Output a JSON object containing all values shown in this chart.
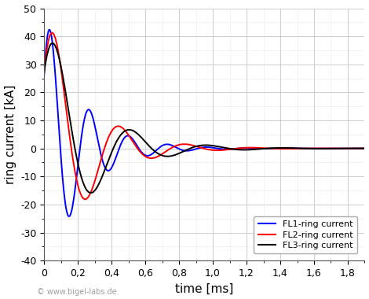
{
  "xlabel": "time [ms]",
  "ylabel": "ring current [kA]",
  "xlim": [
    0,
    1.9
  ],
  "ylim": [
    -40,
    50
  ],
  "yticks": [
    -40,
    -30,
    -20,
    -10,
    0,
    10,
    20,
    30,
    40,
    50
  ],
  "xticks": [
    0.0,
    0.2,
    0.4,
    0.6,
    0.8,
    1.0,
    1.2,
    1.4,
    1.6,
    1.8
  ],
  "xtick_labels": [
    "0",
    "0,2",
    "0,4",
    "0,6",
    "0,8",
    "1,0",
    "1,2",
    "1,4",
    "1,6",
    "1,8"
  ],
  "ytick_labels": [
    "-40",
    "-30",
    "-20",
    "-10",
    "0",
    "10",
    "20",
    "30",
    "40",
    "50"
  ],
  "background_color": "#ffffff",
  "grid_color": "#c8c8c8",
  "watermark": "© www.bigel-labs.de",
  "legend": [
    {
      "label": "FL1-ring current",
      "color": "#0000ff"
    },
    {
      "label": "FL2-ring current",
      "color": "#ff0000"
    },
    {
      "label": "FL3-ring current",
      "color": "#000000"
    }
  ],
  "FL1": {
    "color": "#0000ff",
    "amplitude": 50.0,
    "freq": 4.3,
    "decay": 4.8,
    "phase": 0.55,
    "delay": 0.0
  },
  "FL2": {
    "color": "#ff0000",
    "amplitude": 52.0,
    "freq": 2.55,
    "decay": 4.2,
    "phase": 0.56,
    "delay": 0.0
  },
  "FL3": {
    "color": "#000000",
    "amplitude": 47.0,
    "freq": 2.2,
    "decay": 3.8,
    "phase": 0.62,
    "delay": 0.0
  }
}
